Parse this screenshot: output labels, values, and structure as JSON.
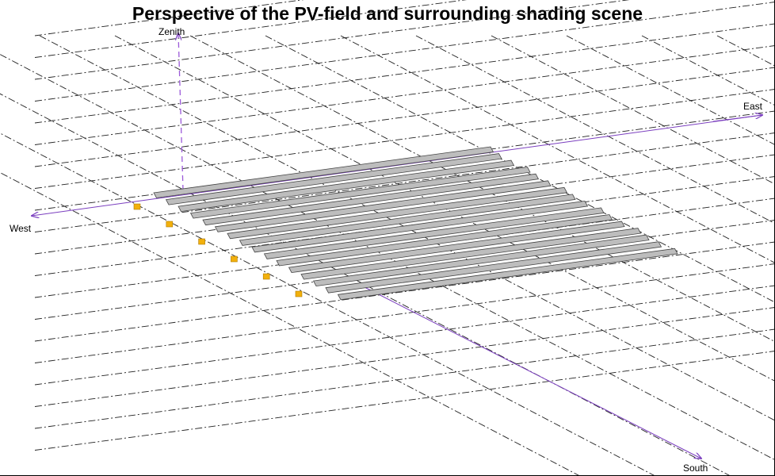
{
  "title": "Perspective of the PV-field and surrounding shading scene",
  "axes": {
    "zenith": "Zenith",
    "east": "East",
    "west": "West",
    "south": "South"
  },
  "colors": {
    "grid": "#222222",
    "axis": "#7b3fbf",
    "panel_fill": "#bdbdbd",
    "panel_stroke": "#444444",
    "marker_fill": "#f2b00c",
    "marker_stroke": "#b07a00"
  },
  "scene": {
    "panel_rows": 16,
    "shading_objects": 6
  }
}
